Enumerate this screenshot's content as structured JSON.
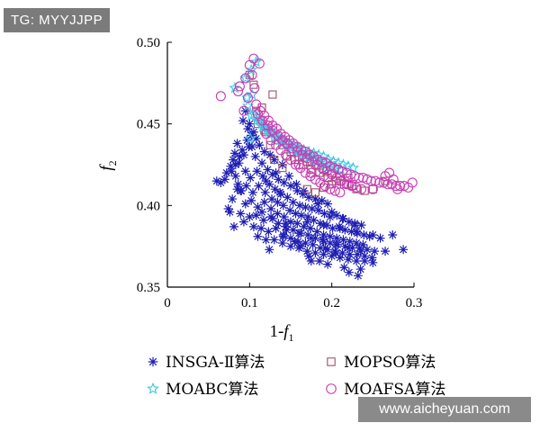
{
  "watermarks": {
    "top": "TG: MYYJJPP",
    "bottom": "www.aicheyuan.com"
  },
  "colors": {
    "insga": "#1e1eb4",
    "mopso": "#a0506e",
    "moabc": "#3cc8e6",
    "moafsa": "#c83cb4"
  },
  "chart_data": {
    "type": "scatter",
    "title": "",
    "xlabel": {
      "prefix": "1-",
      "var": "f",
      "sub": "1"
    },
    "ylabel": {
      "var": "f",
      "sub": "2"
    },
    "xlim": [
      0,
      0.3
    ],
    "ylim": [
      0.35,
      0.5
    ],
    "xticks": [
      0,
      0.1,
      0.2,
      0.3
    ],
    "xtick_labels": [
      "0",
      "0.1",
      "0.2",
      "0.3"
    ],
    "yticks": [
      0.35,
      0.4,
      0.45,
      0.5
    ],
    "ytick_labels": [
      "0.35",
      "0.40",
      "0.45",
      "0.50"
    ],
    "grid": false,
    "legend_position": "bottom",
    "series": [
      {
        "name": "INSGA-Ⅱ算法",
        "marker": "asterisk",
        "x": [
          0.095,
          0.092,
          0.098,
          0.102,
          0.1,
          0.108,
          0.103,
          0.112,
          0.118,
          0.125,
          0.13,
          0.14,
          0.105,
          0.097,
          0.085,
          0.082,
          0.08,
          0.077,
          0.072,
          0.07,
          0.065,
          0.06,
          0.083,
          0.088,
          0.091,
          0.078,
          0.087,
          0.093,
          0.099,
          0.107,
          0.115,
          0.122,
          0.128,
          0.135,
          0.142,
          0.15,
          0.158,
          0.165,
          0.172,
          0.18,
          0.188,
          0.195,
          0.083,
          0.086,
          0.089,
          0.095,
          0.101,
          0.109,
          0.116,
          0.124,
          0.131,
          0.138,
          0.146,
          0.153,
          0.161,
          0.168,
          0.176,
          0.184,
          0.191,
          0.198,
          0.206,
          0.213,
          0.221,
          0.228,
          0.236,
          0.09,
          0.096,
          0.104,
          0.111,
          0.119,
          0.127,
          0.134,
          0.141,
          0.149,
          0.156,
          0.163,
          0.171,
          0.178,
          0.186,
          0.194,
          0.201,
          0.209,
          0.216,
          0.224,
          0.231,
          0.239,
          0.246,
          0.095,
          0.102,
          0.11,
          0.118,
          0.126,
          0.134,
          0.142,
          0.15,
          0.158,
          0.166,
          0.174,
          0.182,
          0.19,
          0.198,
          0.206,
          0.214,
          0.222,
          0.23,
          0.238,
          0.1,
          0.108,
          0.117,
          0.126,
          0.135,
          0.144,
          0.153,
          0.162,
          0.171,
          0.18,
          0.189,
          0.198,
          0.207,
          0.216,
          0.225,
          0.234,
          0.243,
          0.252,
          0.105,
          0.114,
          0.123,
          0.132,
          0.141,
          0.15,
          0.159,
          0.168,
          0.177,
          0.186,
          0.195,
          0.204,
          0.213,
          0.222,
          0.231,
          0.24,
          0.249,
          0.11,
          0.12,
          0.13,
          0.14,
          0.15,
          0.16,
          0.17,
          0.18,
          0.19,
          0.2,
          0.21,
          0.22,
          0.23,
          0.24,
          0.25,
          0.145,
          0.16,
          0.175,
          0.19,
          0.205,
          0.22,
          0.235,
          0.17,
          0.19,
          0.21,
          0.23,
          0.25,
          0.175,
          0.195,
          0.215,
          0.235,
          0.085,
          0.079,
          0.074,
          0.089,
          0.093,
          0.081,
          0.076,
          0.115,
          0.128,
          0.137,
          0.144,
          0.12,
          0.132,
          0.148,
          0.157,
          0.166,
          0.183,
          0.2,
          0.214,
          0.228,
          0.259,
          0.265,
          0.287,
          0.274,
          0.232,
          0.221,
          0.205,
          0.192,
          0.185,
          0.172,
          0.155,
          0.162,
          0.141,
          0.124
        ],
        "y": [
          0.458,
          0.452,
          0.447,
          0.443,
          0.45,
          0.441,
          0.436,
          0.437,
          0.433,
          0.431,
          0.428,
          0.425,
          0.445,
          0.44,
          0.438,
          0.432,
          0.428,
          0.424,
          0.42,
          0.416,
          0.414,
          0.415,
          0.425,
          0.43,
          0.434,
          0.421,
          0.426,
          0.431,
          0.436,
          0.43,
          0.426,
          0.422,
          0.419,
          0.416,
          0.414,
          0.412,
          0.409,
          0.407,
          0.405,
          0.404,
          0.403,
          0.401,
          0.418,
          0.413,
          0.409,
          0.421,
          0.417,
          0.421,
          0.418,
          0.413,
          0.41,
          0.407,
          0.405,
          0.402,
          0.4,
          0.399,
          0.398,
          0.397,
          0.395,
          0.393,
          0.394,
          0.392,
          0.39,
          0.389,
          0.388,
          0.409,
          0.412,
          0.408,
          0.412,
          0.408,
          0.404,
          0.402,
          0.4,
          0.397,
          0.395,
          0.394,
          0.393,
          0.391,
          0.389,
          0.388,
          0.386,
          0.387,
          0.385,
          0.384,
          0.383,
          0.382,
          0.381,
          0.401,
          0.403,
          0.399,
          0.402,
          0.398,
          0.395,
          0.393,
          0.39,
          0.389,
          0.387,
          0.386,
          0.384,
          0.382,
          0.381,
          0.38,
          0.379,
          0.378,
          0.377,
          0.376,
          0.393,
          0.394,
          0.391,
          0.393,
          0.389,
          0.387,
          0.385,
          0.383,
          0.382,
          0.38,
          0.379,
          0.377,
          0.376,
          0.375,
          0.374,
          0.374,
          0.373,
          0.372,
          0.387,
          0.386,
          0.384,
          0.386,
          0.382,
          0.38,
          0.378,
          0.377,
          0.376,
          0.374,
          0.373,
          0.372,
          0.371,
          0.37,
          0.37,
          0.369,
          0.368,
          0.381,
          0.379,
          0.379,
          0.377,
          0.375,
          0.374,
          0.372,
          0.371,
          0.37,
          0.369,
          0.368,
          0.367,
          0.366,
          0.366,
          0.365,
          0.385,
          0.383,
          0.38,
          0.378,
          0.376,
          0.374,
          0.372,
          0.39,
          0.388,
          0.386,
          0.384,
          0.382,
          0.366,
          0.364,
          0.362,
          0.361,
          0.41,
          0.404,
          0.398,
          0.395,
          0.39,
          0.387,
          0.396,
          0.396,
          0.392,
          0.408,
          0.389,
          0.415,
          0.42,
          0.418,
          0.413,
          0.409,
          0.401,
          0.396,
          0.392,
          0.388,
          0.38,
          0.372,
          0.373,
          0.382,
          0.357,
          0.359,
          0.371,
          0.374,
          0.366,
          0.369,
          0.378,
          0.375,
          0.381,
          0.373
        ]
      },
      {
        "name": "MOPSO算法",
        "marker": "square",
        "x": [
          0.1,
          0.105,
          0.115,
          0.128,
          0.11,
          0.12,
          0.135,
          0.14,
          0.15,
          0.16,
          0.17,
          0.18,
          0.19,
          0.2,
          0.21,
          0.22,
          0.125,
          0.145,
          0.155,
          0.165,
          0.175,
          0.185,
          0.195,
          0.205,
          0.215,
          0.225,
          0.13,
          0.14,
          0.118,
          0.113,
          0.108,
          0.265,
          0.23,
          0.24,
          0.25,
          0.17,
          0.18,
          0.19,
          0.2
        ],
        "y": [
          0.48,
          0.474,
          0.46,
          0.468,
          0.45,
          0.445,
          0.44,
          0.437,
          0.433,
          0.43,
          0.427,
          0.425,
          0.422,
          0.42,
          0.418,
          0.417,
          0.437,
          0.43,
          0.428,
          0.425,
          0.422,
          0.42,
          0.417,
          0.415,
          0.413,
          0.412,
          0.428,
          0.423,
          0.446,
          0.452,
          0.458,
          0.415,
          0.41,
          0.409,
          0.41,
          0.41,
          0.408,
          0.411,
          0.413
        ]
      },
      {
        "name": "MOABC算法",
        "marker": "star",
        "x": [
          0.082,
          0.095,
          0.102,
          0.108,
          0.098,
          0.105,
          0.112,
          0.118,
          0.124,
          0.13,
          0.136,
          0.142,
          0.148,
          0.154,
          0.16,
          0.166,
          0.172,
          0.178,
          0.184,
          0.19,
          0.196,
          0.202,
          0.208,
          0.214,
          0.22,
          0.226,
          0.115,
          0.121,
          0.127,
          0.133,
          0.139,
          0.145,
          0.151,
          0.157,
          0.163,
          0.169,
          0.175,
          0.181,
          0.187,
          0.193,
          0.199,
          0.205,
          0.211,
          0.102,
          0.109,
          0.116,
          0.123,
          0.13,
          0.137,
          0.144,
          0.151,
          0.158,
          0.165,
          0.172,
          0.179,
          0.186,
          0.193,
          0.097,
          0.103,
          0.101
        ],
        "y": [
          0.472,
          0.478,
          0.483,
          0.488,
          0.461,
          0.456,
          0.452,
          0.449,
          0.446,
          0.444,
          0.442,
          0.44,
          0.438,
          0.437,
          0.435,
          0.434,
          0.433,
          0.432,
          0.431,
          0.43,
          0.428,
          0.427,
          0.426,
          0.425,
          0.424,
          0.423,
          0.45,
          0.447,
          0.444,
          0.442,
          0.44,
          0.438,
          0.436,
          0.434,
          0.432,
          0.431,
          0.43,
          0.428,
          0.427,
          0.426,
          0.425,
          0.423,
          0.422,
          0.455,
          0.452,
          0.448,
          0.445,
          0.442,
          0.44,
          0.437,
          0.435,
          0.433,
          0.431,
          0.429,
          0.427,
          0.425,
          0.423,
          0.466,
          0.468,
          0.441
        ]
      },
      {
        "name": "MOAFSA算法",
        "marker": "circle",
        "x": [
          0.065,
          0.088,
          0.095,
          0.1,
          0.103,
          0.106,
          0.098,
          0.108,
          0.113,
          0.118,
          0.123,
          0.128,
          0.133,
          0.138,
          0.143,
          0.148,
          0.153,
          0.158,
          0.163,
          0.168,
          0.173,
          0.178,
          0.183,
          0.188,
          0.193,
          0.198,
          0.203,
          0.208,
          0.213,
          0.218,
          0.223,
          0.228,
          0.233,
          0.238,
          0.243,
          0.248,
          0.253,
          0.258,
          0.263,
          0.268,
          0.273,
          0.278,
          0.283,
          0.288,
          0.293,
          0.298,
          0.11,
          0.116,
          0.122,
          0.128,
          0.134,
          0.14,
          0.146,
          0.152,
          0.158,
          0.164,
          0.17,
          0.176,
          0.182,
          0.188,
          0.194,
          0.2,
          0.206,
          0.212,
          0.218,
          0.224,
          0.23,
          0.236,
          0.12,
          0.126,
          0.132,
          0.138,
          0.144,
          0.15,
          0.156,
          0.162,
          0.168,
          0.174,
          0.18,
          0.186,
          0.192,
          0.198,
          0.204,
          0.21,
          0.093,
          0.086,
          0.105,
          0.112,
          0.25,
          0.265,
          0.27,
          0.275,
          0.28,
          0.22,
          0.21,
          0.19,
          0.175,
          0.16
        ],
        "y": [
          0.467,
          0.473,
          0.478,
          0.486,
          0.48,
          0.472,
          0.466,
          0.462,
          0.458,
          0.455,
          0.452,
          0.449,
          0.447,
          0.444,
          0.442,
          0.44,
          0.438,
          0.436,
          0.434,
          0.433,
          0.431,
          0.43,
          0.428,
          0.427,
          0.426,
          0.424,
          0.423,
          0.422,
          0.421,
          0.42,
          0.419,
          0.418,
          0.417,
          0.417,
          0.416,
          0.415,
          0.415,
          0.414,
          0.414,
          0.413,
          0.413,
          0.412,
          0.412,
          0.412,
          0.411,
          0.414,
          0.456,
          0.452,
          0.449,
          0.446,
          0.443,
          0.44,
          0.438,
          0.435,
          0.433,
          0.431,
          0.429,
          0.427,
          0.425,
          0.423,
          0.421,
          0.419,
          0.417,
          0.415,
          0.413,
          0.412,
          0.411,
          0.41,
          0.444,
          0.44,
          0.437,
          0.434,
          0.431,
          0.428,
          0.425,
          0.423,
          0.42,
          0.418,
          0.416,
          0.414,
          0.412,
          0.41,
          0.409,
          0.408,
          0.458,
          0.47,
          0.49,
          0.487,
          0.41,
          0.418,
          0.42,
          0.416,
          0.41,
          0.413,
          0.415,
          0.418,
          0.42,
          0.425
        ]
      }
    ]
  }
}
